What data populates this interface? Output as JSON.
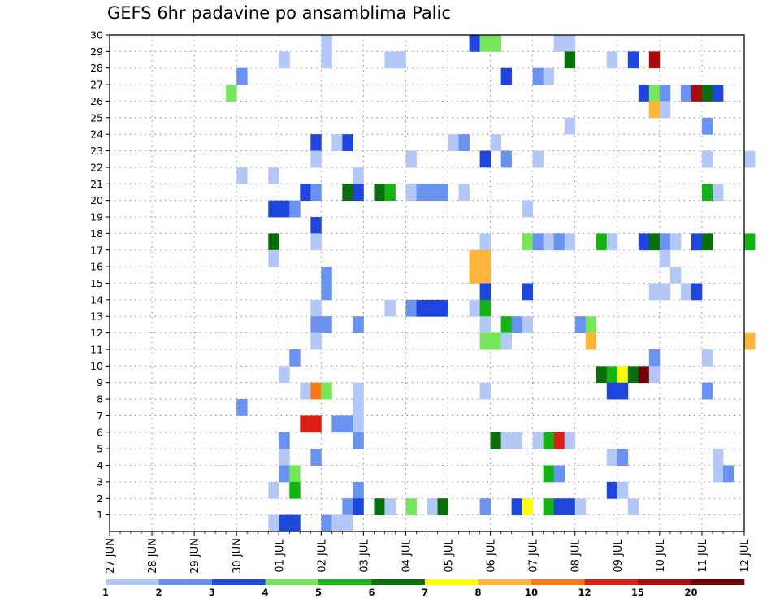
{
  "chart_data": {
    "type": "heatmap",
    "title": "GEFS 6hr padavine po ansamblima Palic",
    "xlabel": "",
    "ylabel": "",
    "x_tick_labels": [
      "27 JUN",
      "28 JUN",
      "29 JUN",
      "30 JUN",
      "01 JUL",
      "02 JUL",
      "03 JUL",
      "04 JUL",
      "05 JUL",
      "06 JUL",
      "07 JUL",
      "08 JUL",
      "09 JUL",
      "10 JUL",
      "11 JUL",
      "12 JUL"
    ],
    "x_unit": "6-hour step (4 per day, day 0 = 27 JUN)",
    "xlim": [
      0,
      60
    ],
    "y_tick_labels": [
      "1",
      "2",
      "3",
      "4",
      "5",
      "6",
      "7",
      "8",
      "9",
      "10",
      "11",
      "12",
      "13",
      "14",
      "15",
      "16",
      "17",
      "18",
      "19",
      "20",
      "21",
      "22",
      "23",
      "24",
      "25",
      "26",
      "27",
      "28",
      "29",
      "30"
    ],
    "ylim": [
      0,
      30
    ],
    "grid": true,
    "legend": "bottom",
    "colorbar": {
      "colors": [
        "#b4c8f7",
        "#6a92f0",
        "#1e46dc",
        "#78e65a",
        "#14b414",
        "#0a6e0a",
        "#ffff00",
        "#ffb43c",
        "#ff7814",
        "#dc1e14",
        "#aa0a0a",
        "#6e0000"
      ],
      "tick_labels": [
        "1",
        "2",
        "3",
        "4",
        "5",
        "6",
        "7",
        "8",
        "10",
        "12",
        "15",
        "20"
      ]
    },
    "cells_format": "[x_step, member_row, color_index]",
    "cells": [
      [
        20,
        29,
        0
      ],
      [
        34,
        29,
        2
      ],
      [
        35,
        29,
        3
      ],
      [
        36,
        29,
        3
      ],
      [
        42,
        29,
        0
      ],
      [
        43,
        29,
        0
      ],
      [
        16,
        28,
        0
      ],
      [
        20,
        28,
        0
      ],
      [
        26,
        28,
        0
      ],
      [
        27,
        28,
        0
      ],
      [
        43,
        28,
        5
      ],
      [
        47,
        28,
        0
      ],
      [
        49,
        28,
        2
      ],
      [
        51,
        28,
        10
      ],
      [
        12,
        27,
        1
      ],
      [
        37,
        27,
        2
      ],
      [
        40,
        27,
        1
      ],
      [
        41,
        27,
        0
      ],
      [
        11,
        26,
        3
      ],
      [
        50,
        26,
        2
      ],
      [
        51,
        26,
        3
      ],
      [
        52,
        26,
        1
      ],
      [
        54,
        26,
        1
      ],
      [
        55,
        26,
        10
      ],
      [
        56,
        26,
        5
      ],
      [
        57,
        26,
        2
      ],
      [
        51,
        25,
        7
      ],
      [
        52,
        25,
        0
      ],
      [
        43,
        24,
        0
      ],
      [
        56,
        24,
        1
      ],
      [
        19,
        23,
        2
      ],
      [
        21,
        23,
        0
      ],
      [
        22,
        23,
        2
      ],
      [
        32,
        23,
        0
      ],
      [
        33,
        23,
        1
      ],
      [
        36,
        23,
        0
      ],
      [
        19,
        22,
        0
      ],
      [
        28,
        22,
        0
      ],
      [
        35,
        22,
        2
      ],
      [
        37,
        22,
        1
      ],
      [
        40,
        22,
        0
      ],
      [
        56,
        22,
        0
      ],
      [
        60,
        22,
        0
      ],
      [
        12,
        21,
        0
      ],
      [
        15,
        21,
        0
      ],
      [
        23,
        21,
        0
      ],
      [
        18,
        20,
        2
      ],
      [
        19,
        20,
        1
      ],
      [
        22,
        20,
        5
      ],
      [
        23,
        20,
        2
      ],
      [
        25,
        20,
        5
      ],
      [
        26,
        20,
        4
      ],
      [
        28,
        20,
        0
      ],
      [
        29,
        20,
        1
      ],
      [
        30,
        20,
        1
      ],
      [
        31,
        20,
        1
      ],
      [
        33,
        20,
        0
      ],
      [
        56,
        20,
        4
      ],
      [
        57,
        20,
        0
      ],
      [
        15,
        19,
        2
      ],
      [
        16,
        19,
        2
      ],
      [
        17,
        19,
        1
      ],
      [
        39,
        19,
        0
      ],
      [
        19,
        18,
        2
      ],
      [
        15,
        17,
        5
      ],
      [
        19,
        17,
        0
      ],
      [
        35,
        17,
        0
      ],
      [
        39,
        17,
        3
      ],
      [
        40,
        17,
        1
      ],
      [
        41,
        17,
        0
      ],
      [
        42,
        17,
        1
      ],
      [
        43,
        17,
        0
      ],
      [
        46,
        17,
        4
      ],
      [
        47,
        17,
        0
      ],
      [
        50,
        17,
        2
      ],
      [
        51,
        17,
        5
      ],
      [
        52,
        17,
        1
      ],
      [
        53,
        17,
        0
      ],
      [
        55,
        17,
        2
      ],
      [
        56,
        17,
        5
      ],
      [
        60,
        17,
        4
      ],
      [
        15,
        16,
        0
      ],
      [
        34,
        16,
        7
      ],
      [
        35,
        16,
        7
      ],
      [
        52,
        16,
        0
      ],
      [
        20,
        15,
        1
      ],
      [
        34,
        15,
        7
      ],
      [
        35,
        15,
        7
      ],
      [
        53,
        15,
        0
      ],
      [
        20,
        14,
        1
      ],
      [
        35,
        14,
        2
      ],
      [
        39,
        14,
        2
      ],
      [
        51,
        14,
        0
      ],
      [
        52,
        14,
        0
      ],
      [
        54,
        14,
        0
      ],
      [
        55,
        14,
        2
      ],
      [
        19,
        13,
        0
      ],
      [
        26,
        13,
        0
      ],
      [
        28,
        13,
        1
      ],
      [
        29,
        13,
        2
      ],
      [
        30,
        13,
        2
      ],
      [
        31,
        13,
        2
      ],
      [
        34,
        13,
        0
      ],
      [
        35,
        13,
        4
      ],
      [
        19,
        12,
        1
      ],
      [
        20,
        12,
        1
      ],
      [
        23,
        12,
        1
      ],
      [
        35,
        12,
        0
      ],
      [
        37,
        12,
        4
      ],
      [
        38,
        12,
        1
      ],
      [
        39,
        12,
        0
      ],
      [
        44,
        12,
        1
      ],
      [
        45,
        12,
        3
      ],
      [
        19,
        11,
        0
      ],
      [
        35,
        11,
        3
      ],
      [
        36,
        11,
        3
      ],
      [
        37,
        11,
        0
      ],
      [
        45,
        11,
        7
      ],
      [
        60,
        11,
        7
      ],
      [
        17,
        10,
        1
      ],
      [
        51,
        10,
        1
      ],
      [
        56,
        10,
        0
      ],
      [
        16,
        9,
        0
      ],
      [
        46,
        9,
        5
      ],
      [
        47,
        9,
        4
      ],
      [
        48,
        9,
        6
      ],
      [
        49,
        9,
        5
      ],
      [
        50,
        9,
        11
      ],
      [
        51,
        9,
        0
      ],
      [
        18,
        8,
        0
      ],
      [
        19,
        8,
        8
      ],
      [
        20,
        8,
        3
      ],
      [
        23,
        8,
        0
      ],
      [
        35,
        8,
        0
      ],
      [
        47,
        8,
        2
      ],
      [
        48,
        8,
        2
      ],
      [
        56,
        8,
        1
      ],
      [
        12,
        7,
        1
      ],
      [
        23,
        7,
        0
      ],
      [
        18,
        6,
        9
      ],
      [
        19,
        6,
        9
      ],
      [
        21,
        6,
        1
      ],
      [
        22,
        6,
        1
      ],
      [
        23,
        6,
        0
      ],
      [
        16,
        5,
        1
      ],
      [
        23,
        5,
        1
      ],
      [
        36,
        5,
        5
      ],
      [
        37,
        5,
        0
      ],
      [
        38,
        5,
        0
      ],
      [
        40,
        5,
        0
      ],
      [
        41,
        5,
        4
      ],
      [
        42,
        5,
        9
      ],
      [
        43,
        5,
        0
      ],
      [
        16,
        4,
        0
      ],
      [
        19,
        4,
        1
      ],
      [
        47,
        4,
        0
      ],
      [
        48,
        4,
        1
      ],
      [
        57,
        4,
        0
      ],
      [
        16,
        3,
        1
      ],
      [
        17,
        3,
        3
      ],
      [
        41,
        3,
        4
      ],
      [
        42,
        3,
        1
      ],
      [
        57,
        3,
        0
      ],
      [
        58,
        3,
        1
      ],
      [
        15,
        2,
        0
      ],
      [
        17,
        2,
        4
      ],
      [
        23,
        2,
        1
      ],
      [
        47,
        2,
        2
      ],
      [
        48,
        2,
        0
      ],
      [
        22,
        1,
        1
      ],
      [
        23,
        1,
        2
      ],
      [
        25,
        1,
        5
      ],
      [
        26,
        1,
        0
      ],
      [
        28,
        1,
        3
      ],
      [
        30,
        1,
        0
      ],
      [
        31,
        1,
        5
      ],
      [
        35,
        1,
        1
      ],
      [
        38,
        1,
        2
      ],
      [
        39,
        1,
        6
      ],
      [
        41,
        1,
        4
      ],
      [
        42,
        1,
        2
      ],
      [
        43,
        1,
        2
      ],
      [
        44,
        1,
        0
      ],
      [
        49,
        1,
        0
      ],
      [
        15,
        0,
        0
      ],
      [
        16,
        0,
        2
      ],
      [
        17,
        0,
        2
      ],
      [
        20,
        0,
        1
      ],
      [
        21,
        0,
        0
      ],
      [
        22,
        0,
        0
      ]
    ]
  }
}
